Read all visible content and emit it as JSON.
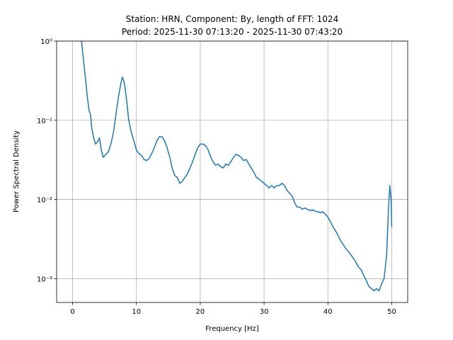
{
  "chart_data": {
    "type": "line",
    "title": "Station: HRN, Component: By, length of FFT: 1024",
    "subtitle": "Period: 2025-11-30 07:13:20 - 2025-11-30 07:43:20",
    "xlabel": "Frequency [Hz]",
    "ylabel": "Power Spectral Density",
    "xlim": [
      -2.5,
      52.5
    ],
    "xticks": [
      0,
      10,
      20,
      30,
      40,
      50
    ],
    "ylim": [
      0.0005,
      1
    ],
    "log_y": true,
    "yticks": [
      {
        "value": 0.001,
        "label": "10⁻³"
      },
      {
        "value": 0.01,
        "label": "10⁻²"
      },
      {
        "value": 0.1,
        "label": "10⁻¹"
      },
      {
        "value": 1,
        "label": "10⁰"
      }
    ],
    "grid": true,
    "x": [
      1.4,
      1.6,
      2.0,
      2.3,
      2.6,
      2.8,
      3.0,
      3.3,
      3.6,
      4.0,
      4.2,
      4.5,
      4.8,
      5.2,
      5.6,
      6.0,
      6.4,
      6.8,
      7.2,
      7.6,
      7.8,
      8.1,
      8.4,
      8.8,
      9.2,
      9.6,
      10.0,
      10.4,
      10.8,
      11.2,
      11.6,
      12.0,
      12.4,
      12.8,
      13.2,
      13.6,
      14.0,
      14.4,
      14.8,
      15.2,
      15.6,
      16.0,
      16.4,
      16.8,
      17.2,
      17.6,
      18.0,
      18.4,
      18.8,
      19.2,
      19.6,
      20.0,
      20.4,
      20.8,
      21.2,
      21.6,
      22.0,
      22.4,
      22.8,
      23.2,
      23.6,
      24.0,
      24.4,
      24.8,
      25.2,
      25.6,
      26.0,
      26.4,
      26.8,
      27.2,
      27.6,
      28.0,
      28.4,
      28.8,
      29.2,
      29.6,
      30.0,
      30.4,
      30.8,
      31.2,
      31.6,
      32.0,
      32.4,
      32.8,
      33.2,
      33.6,
      34.0,
      34.4,
      34.8,
      35.2,
      35.6,
      36.0,
      36.4,
      36.8,
      37.2,
      37.6,
      38.0,
      38.4,
      38.8,
      39.2,
      39.6,
      40.0,
      40.4,
      40.8,
      41.2,
      41.6,
      42.0,
      42.4,
      42.8,
      43.2,
      43.6,
      44.0,
      44.4,
      44.8,
      45.2,
      45.6,
      46.0,
      46.4,
      46.8,
      47.2,
      47.6,
      48.0,
      48.4,
      48.8,
      49.2,
      49.5,
      49.7,
      49.9,
      50.0
    ],
    "series": [
      {
        "name": "By",
        "color": "#1f77b4",
        "values": [
          1.0,
          0.7,
          0.35,
          0.2,
          0.13,
          0.12,
          0.08,
          0.06,
          0.05,
          0.055,
          0.06,
          0.042,
          0.034,
          0.037,
          0.04,
          0.05,
          0.07,
          0.12,
          0.2,
          0.3,
          0.35,
          0.3,
          0.2,
          0.1,
          0.07,
          0.055,
          0.042,
          0.038,
          0.036,
          0.032,
          0.031,
          0.033,
          0.038,
          0.045,
          0.055,
          0.062,
          0.062,
          0.055,
          0.045,
          0.035,
          0.025,
          0.02,
          0.019,
          0.016,
          0.017,
          0.019,
          0.021,
          0.025,
          0.03,
          0.037,
          0.045,
          0.05,
          0.05,
          0.048,
          0.043,
          0.035,
          0.03,
          0.027,
          0.028,
          0.026,
          0.025,
          0.028,
          0.027,
          0.03,
          0.034,
          0.037,
          0.036,
          0.034,
          0.031,
          0.032,
          0.028,
          0.025,
          0.022,
          0.019,
          0.018,
          0.017,
          0.016,
          0.015,
          0.014,
          0.015,
          0.014,
          0.015,
          0.015,
          0.016,
          0.015,
          0.013,
          0.012,
          0.011,
          0.009,
          0.008,
          0.008,
          0.0075,
          0.0078,
          0.0075,
          0.0072,
          0.0074,
          0.0071,
          0.007,
          0.0068,
          0.007,
          0.0065,
          0.006,
          0.0052,
          0.0045,
          0.004,
          0.0035,
          0.003,
          0.0027,
          0.0024,
          0.0022,
          0.002,
          0.0018,
          0.0016,
          0.0014,
          0.0013,
          0.0011,
          0.00095,
          0.0008,
          0.00075,
          0.0007,
          0.00075,
          0.0007,
          0.00085,
          0.001,
          0.002,
          0.008,
          0.015,
          0.01,
          0.0045
        ]
      }
    ]
  }
}
